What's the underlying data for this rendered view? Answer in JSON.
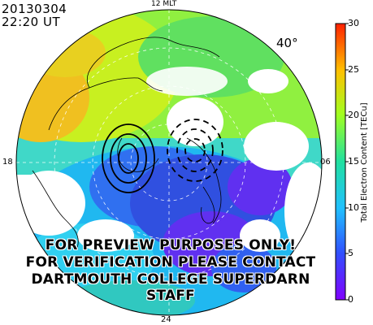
{
  "header": {
    "date": "20130304",
    "time": "22:20 UT"
  },
  "map": {
    "latitude_label": "40°",
    "mlt_labels": {
      "top": "12 MLT",
      "bottom": "24",
      "left": "18",
      "right": "06"
    }
  },
  "colorbar": {
    "label": "Total Electron Content [TECu]",
    "ticks": [
      "0",
      "5",
      "10",
      "15",
      "20",
      "25",
      "30"
    ],
    "range": [
      0,
      30
    ]
  },
  "watermark": [
    "FOR PREVIEW PURPOSES ONLY!",
    "FOR VERIFICATION PLEASE CONTACT",
    "DARTMOUTH COLLEGE SUPERDARN STAFF"
  ],
  "colors": {
    "tec_0": "#8000ff",
    "tec_5": "#3050ff",
    "tec_10": "#20c0ff",
    "tec_15": "#20e0a0",
    "tec_20": "#a0ff20",
    "tec_25": "#ffc000",
    "tec_30": "#ff2000"
  }
}
